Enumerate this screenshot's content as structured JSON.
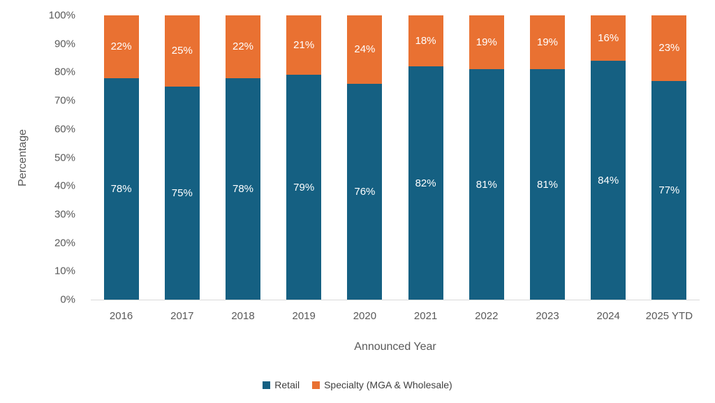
{
  "chart_data": {
    "type": "bar",
    "variant": "stacked-100-percent",
    "title": "",
    "xlabel": "Announced Year",
    "ylabel": "Percentage",
    "categories": [
      "2016",
      "2017",
      "2018",
      "2019",
      "2020",
      "2021",
      "2022",
      "2023",
      "2024",
      "2025 YTD"
    ],
    "series": [
      {
        "name": "Retail",
        "color": "#156082",
        "values": [
          78,
          75,
          78,
          79,
          76,
          82,
          81,
          81,
          84,
          77
        ],
        "labels": [
          "78%",
          "75%",
          "78%",
          "79%",
          "76%",
          "82%",
          "81%",
          "81%",
          "84%",
          "77%"
        ]
      },
      {
        "name": "Specialty (MGA & Wholesale)",
        "color": "#E97132",
        "values": [
          22,
          25,
          22,
          21,
          24,
          18,
          19,
          19,
          16,
          23
        ],
        "labels": [
          "22%",
          "25%",
          "22%",
          "21%",
          "24%",
          "18%",
          "19%",
          "19%",
          "16%",
          "23%"
        ]
      }
    ],
    "ylim": [
      0,
      100
    ],
    "yticks": [
      0,
      10,
      20,
      30,
      40,
      50,
      60,
      70,
      80,
      90,
      100
    ],
    "ytick_labels": [
      "0%",
      "10%",
      "20%",
      "30%",
      "40%",
      "50%",
      "60%",
      "70%",
      "80%",
      "90%",
      "100%"
    ],
    "grid": false,
    "legend_position": "bottom",
    "colors": {
      "axis_line": "#D9D9D9",
      "tick_label": "#595959",
      "axis_title": "#595959",
      "legend_text": "#404040",
      "data_label": "#FFFFFF",
      "background": "#FFFFFF"
    }
  }
}
